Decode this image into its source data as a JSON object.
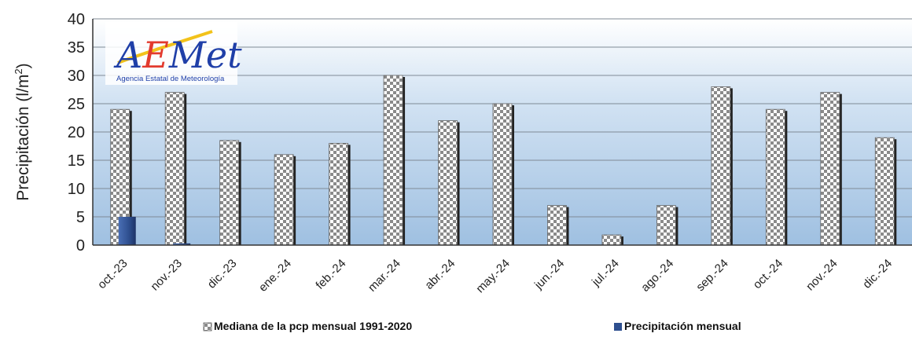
{
  "logo": {
    "text_a": "A",
    "text_e": "E",
    "text_met": "Met",
    "subtitle": "Agencia Estatal de Meteorología"
  },
  "chart_data": {
    "type": "bar",
    "ylabel": "Precipitación (l/m²)",
    "ylabel_parts": [
      "Precipitación (l/m",
      "2",
      ")"
    ],
    "ylim": [
      0,
      40
    ],
    "yticks": [
      "0",
      "5",
      "10",
      "15",
      "20",
      "25",
      "30",
      "35",
      "40"
    ],
    "grid": true,
    "legend_position": "bottom",
    "categories": [
      "oct.-23",
      "nov.-23",
      "dic.-23",
      "ene.-24",
      "feb.-24",
      "mar.-24",
      "abr.-24",
      "may.-24",
      "jun.-24",
      "jul.-24",
      "ago.-24",
      "sep.-24",
      "oct.-24",
      "nov.-24",
      "dic.-24"
    ],
    "series": [
      {
        "name": "Mediana de la pcp mensual 1991-2020",
        "pattern": "checkerboard",
        "color": "#8a8a8a",
        "values": [
          24,
          27,
          18.5,
          16,
          18,
          30,
          22,
          25,
          7,
          1.8,
          7,
          28,
          24,
          27,
          19
        ]
      },
      {
        "name": "Precipitación mensual",
        "color": "#2e4f8f",
        "values": [
          5,
          0.3,
          null,
          null,
          null,
          null,
          null,
          null,
          null,
          null,
          null,
          null,
          null,
          null,
          null
        ]
      }
    ]
  }
}
